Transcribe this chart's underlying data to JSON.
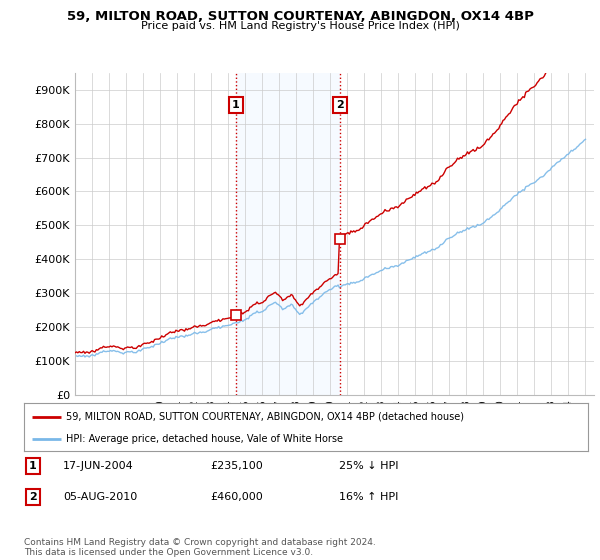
{
  "title_line1": "59, MILTON ROAD, SUTTON COURTENAY, ABINGDON, OX14 4BP",
  "title_line2": "Price paid vs. HM Land Registry's House Price Index (HPI)",
  "ylim": [
    0,
    950000
  ],
  "yticks": [
    0,
    100000,
    200000,
    300000,
    400000,
    500000,
    600000,
    700000,
    800000,
    900000
  ],
  "ytick_labels": [
    "£0",
    "£100K",
    "£200K",
    "£300K",
    "£400K",
    "£500K",
    "£600K",
    "£700K",
    "£800K",
    "£900K"
  ],
  "xlim_start": 1995.0,
  "xlim_end": 2025.5,
  "hpi_color": "#7ab8e8",
  "price_color": "#cc0000",
  "shade_color": "#ddeeff",
  "marker1_date": 2004.46,
  "marker1_price": 235100,
  "marker2_date": 2010.58,
  "marker2_price": 460000,
  "legend_line1": "59, MILTON ROAD, SUTTON COURTENAY, ABINGDON, OX14 4BP (detached house)",
  "legend_line2": "HPI: Average price, detached house, Vale of White Horse",
  "footnote": "Contains HM Land Registry data © Crown copyright and database right 2024.\nThis data is licensed under the Open Government Licence v3.0.",
  "background_color": "#ffffff"
}
